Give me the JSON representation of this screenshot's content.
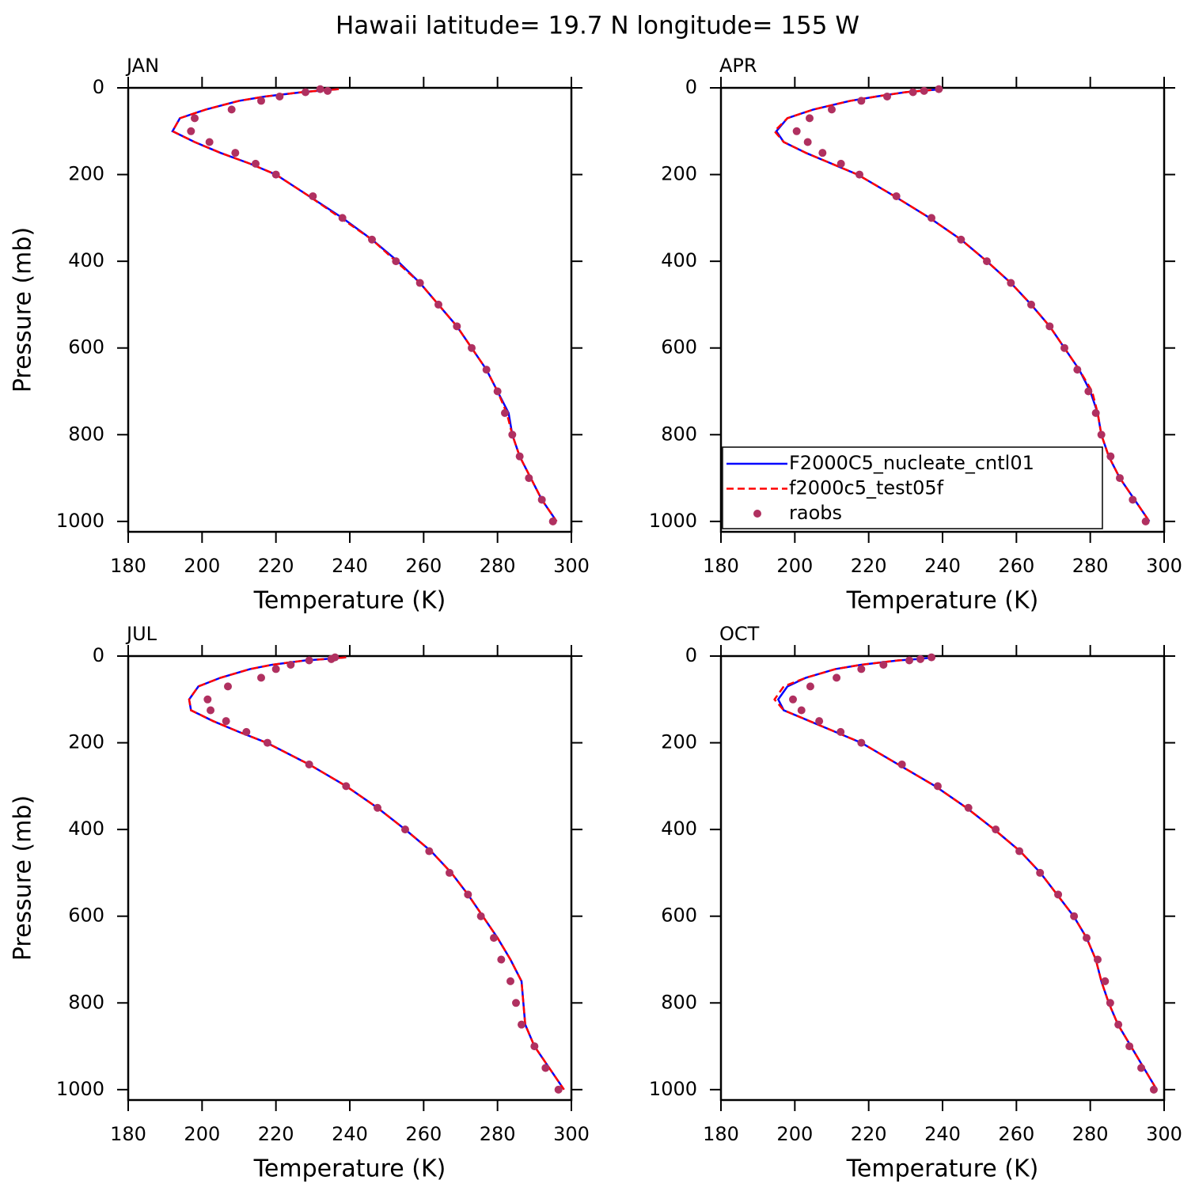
{
  "title": "Hawaii  latitude= 19.7 N longitude= 155 W",
  "chart_data": [
    {
      "type": "line",
      "subtitle": "JAN",
      "xlabel": "Temperature (K)",
      "ylabel": "Pressure (mb)",
      "xlim": [
        180,
        300
      ],
      "ylim": [
        1024,
        0
      ],
      "xticks": [
        180,
        200,
        220,
        240,
        260,
        280,
        300
      ],
      "yticks": [
        0,
        200,
        400,
        600,
        800,
        1000
      ],
      "y": [
        3,
        7,
        10,
        20,
        30,
        50,
        70,
        100,
        125,
        150,
        175,
        200,
        250,
        300,
        350,
        400,
        450,
        500,
        550,
        600,
        650,
        700,
        750,
        800,
        850,
        900,
        950,
        1000
      ],
      "series": [
        {
          "name": "F2000C5_nucleate_cntl01",
          "color": "#0000ff",
          "style": "solid",
          "values": [
            237,
            231,
            227,
            217,
            210,
            201,
            194,
            192,
            198,
            205,
            213,
            220,
            229,
            238,
            246,
            253,
            259,
            264,
            269,
            273,
            277,
            280,
            283,
            284,
            286,
            289,
            292,
            296
          ]
        },
        {
          "name": "f2000c5_test05f",
          "color": "#ff0000",
          "style": "dashed",
          "values": [
            237,
            231,
            227,
            217,
            210,
            201,
            194,
            192,
            198,
            205,
            213,
            220,
            229,
            237.5,
            246,
            252.5,
            259,
            264,
            269,
            273,
            277,
            280,
            282.5,
            284,
            286,
            289,
            292,
            296
          ]
        },
        {
          "name": "raobs",
          "color": "#b03060",
          "style": "markers",
          "values": [
            232,
            234,
            228,
            221,
            216,
            208,
            198,
            197,
            202,
            209,
            214.5,
            220,
            230,
            238,
            246,
            252.5,
            259,
            264,
            269,
            273,
            277,
            280,
            282,
            284,
            286,
            288.5,
            292,
            295
          ]
        }
      ]
    },
    {
      "type": "line",
      "subtitle": "APR",
      "xlabel": "Temperature (K)",
      "legend": "lower left",
      "xlim": [
        180,
        300
      ],
      "ylim": [
        1024,
        0
      ],
      "xticks": [
        180,
        200,
        220,
        240,
        260,
        280,
        300
      ],
      "yticks": [
        0,
        200,
        400,
        600,
        800,
        1000
      ],
      "y": [
        3,
        7,
        10,
        20,
        30,
        50,
        70,
        100,
        125,
        150,
        175,
        200,
        250,
        300,
        350,
        400,
        450,
        500,
        550,
        600,
        650,
        700,
        750,
        800,
        850,
        900,
        950,
        1000
      ],
      "series": [
        {
          "name": "F2000C5_nucleate_cntl01",
          "color": "#0000ff",
          "style": "solid",
          "values": [
            240,
            234,
            230,
            222,
            215,
            205,
            198,
            195,
            197,
            203,
            210,
            217,
            227,
            236.5,
            245,
            252,
            258.5,
            264,
            269,
            273,
            277,
            280,
            282,
            283,
            285,
            288,
            292,
            296
          ]
        },
        {
          "name": "f2000c5_test05f",
          "color": "#ff0000",
          "style": "dashed",
          "values": [
            240,
            234,
            230,
            222,
            215,
            205,
            198,
            194.5,
            197,
            203,
            210,
            217,
            227,
            236.5,
            245,
            252,
            258.5,
            264,
            269,
            273,
            277,
            280.5,
            282,
            283,
            285,
            288,
            292,
            296
          ]
        },
        {
          "name": "raobs",
          "color": "#b03060",
          "style": "markers",
          "values": [
            239,
            235,
            232,
            225,
            218,
            210,
            204,
            200.5,
            203.5,
            207.5,
            212.5,
            217.5,
            227.5,
            237,
            245,
            252,
            258.5,
            264,
            269,
            273,
            276.5,
            279.5,
            281.5,
            283,
            285.5,
            288,
            291.5,
            295
          ]
        }
      ]
    },
    {
      "type": "line",
      "subtitle": "JUL",
      "xlabel": "Temperature (K)",
      "ylabel": "Pressure (mb)",
      "xlim": [
        180,
        300
      ],
      "ylim": [
        1024,
        0
      ],
      "xticks": [
        180,
        200,
        220,
        240,
        260,
        280,
        300
      ],
      "yticks": [
        0,
        200,
        400,
        600,
        800,
        1000
      ],
      "y": [
        3,
        7,
        10,
        20,
        30,
        50,
        70,
        100,
        125,
        150,
        175,
        200,
        250,
        300,
        350,
        400,
        450,
        500,
        550,
        600,
        650,
        700,
        750,
        800,
        850,
        900,
        950,
        1000
      ],
      "series": [
        {
          "name": "F2000C5_nucleate_cntl01",
          "color": "#0000ff",
          "style": "solid",
          "values": [
            239,
            233,
            228,
            219,
            213,
            205,
            199,
            196.5,
            197,
            203,
            210,
            217.5,
            229,
            239,
            247.5,
            255,
            262,
            267.5,
            272,
            276,
            280,
            283.5,
            286.5,
            287,
            287.5,
            290,
            294,
            298
          ]
        },
        {
          "name": "f2000c5_test05f",
          "color": "#ff0000",
          "style": "dashed",
          "values": [
            239,
            233,
            228,
            219,
            213,
            205,
            199,
            196.5,
            197,
            203,
            210,
            217.5,
            229,
            239,
            247.5,
            255,
            262,
            267.5,
            272,
            276,
            280,
            283.5,
            286.5,
            287,
            287.5,
            290,
            294,
            298
          ]
        },
        {
          "name": "raobs",
          "color": "#b03060",
          "style": "markers",
          "values": [
            236,
            235,
            229,
            224,
            220,
            216,
            207,
            201.5,
            202.3,
            206.5,
            212,
            217.7,
            229,
            239,
            247.5,
            255,
            261.5,
            267,
            272,
            275.5,
            279,
            281,
            283.5,
            285,
            286.5,
            290,
            293,
            296.5
          ]
        }
      ]
    },
    {
      "type": "line",
      "subtitle": "OCT",
      "xlabel": "Temperature (K)",
      "xlim": [
        180,
        300
      ],
      "ylim": [
        1024,
        0
      ],
      "xticks": [
        180,
        200,
        220,
        240,
        260,
        280,
        300
      ],
      "yticks": [
        0,
        200,
        400,
        600,
        800,
        1000
      ],
      "y": [
        3,
        7,
        10,
        20,
        30,
        50,
        70,
        100,
        125,
        150,
        175,
        200,
        250,
        300,
        350,
        400,
        450,
        500,
        550,
        600,
        650,
        700,
        750,
        800,
        850,
        900,
        950,
        1000
      ],
      "series": [
        {
          "name": "F2000C5_nucleate_cntl01",
          "color": "#0000ff",
          "style": "solid",
          "values": [
            238,
            233,
            228,
            218,
            211,
            203,
            198,
            195.5,
            197,
            204,
            211,
            218,
            228,
            238,
            246.5,
            254,
            261,
            266.5,
            271,
            275.5,
            279,
            281.5,
            283,
            285,
            287.5,
            291,
            294.5,
            298
          ]
        },
        {
          "name": "f2000c5_test05f",
          "color": "#ff0000",
          "style": "dashed",
          "values": [
            238,
            233,
            228,
            218,
            211,
            203,
            197,
            194.5,
            197,
            204,
            211,
            218,
            228,
            238,
            246.5,
            254,
            261,
            266.5,
            271,
            275.5,
            279,
            281.5,
            283,
            285,
            287.5,
            291,
            294.5,
            298
          ]
        },
        {
          "name": "raobs",
          "color": "#b03060",
          "style": "markers",
          "values": [
            237,
            234,
            231,
            224,
            218,
            211.3,
            204.2,
            199.5,
            201.8,
            206.6,
            212.4,
            218,
            229,
            238.7,
            247,
            254.4,
            260.8,
            266.4,
            271.3,
            275.6,
            279,
            282,
            284,
            285.4,
            287.6,
            290.6,
            293.8,
            297.2
          ]
        }
      ]
    }
  ]
}
